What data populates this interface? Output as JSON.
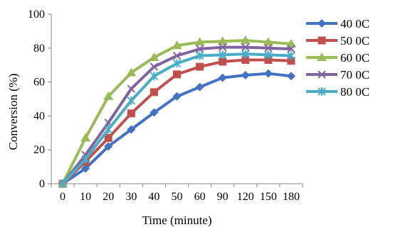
{
  "chart_data": {
    "type": "line",
    "title": "",
    "xlabel": "Time (minute)",
    "ylabel": "Conversion (%)",
    "categories": [
      "0",
      "10",
      "20",
      "30",
      "40",
      "50",
      "60",
      "90",
      "120",
      "150",
      "180"
    ],
    "ylim": [
      0,
      100
    ],
    "yticks": [
      "0",
      "20",
      "40",
      "60",
      "80",
      "100"
    ],
    "grid": false,
    "legend_position": "right",
    "series": [
      {
        "name": "40 0C",
        "color": "#4472C4",
        "marker": "diamond",
        "values": [
          0,
          9,
          22,
          32,
          42,
          51.5,
          57,
          62.5,
          64,
          65,
          63.5
        ]
      },
      {
        "name": "50 0C",
        "color": "#C0504D",
        "marker": "square",
        "values": [
          0,
          13,
          27,
          41.5,
          54,
          64.5,
          69,
          72,
          73,
          73,
          72.5
        ]
      },
      {
        "name": "60 0C",
        "color": "#9BBB59",
        "marker": "triangle",
        "values": [
          0,
          27,
          51.5,
          65.5,
          74.5,
          81.5,
          83.5,
          84,
          84.5,
          83.5,
          82.5
        ]
      },
      {
        "name": "70 0C",
        "color": "#8064A2",
        "marker": "x",
        "values": [
          0,
          17,
          36,
          56,
          69,
          75.5,
          79.5,
          80.5,
          80.5,
          80,
          79.5
        ]
      },
      {
        "name": "80 0C",
        "color": "#4BACC6",
        "marker": "asterisk",
        "values": [
          0,
          14.5,
          32,
          49,
          63.5,
          71,
          75.5,
          76,
          76.5,
          76,
          75.5
        ]
      }
    ]
  }
}
